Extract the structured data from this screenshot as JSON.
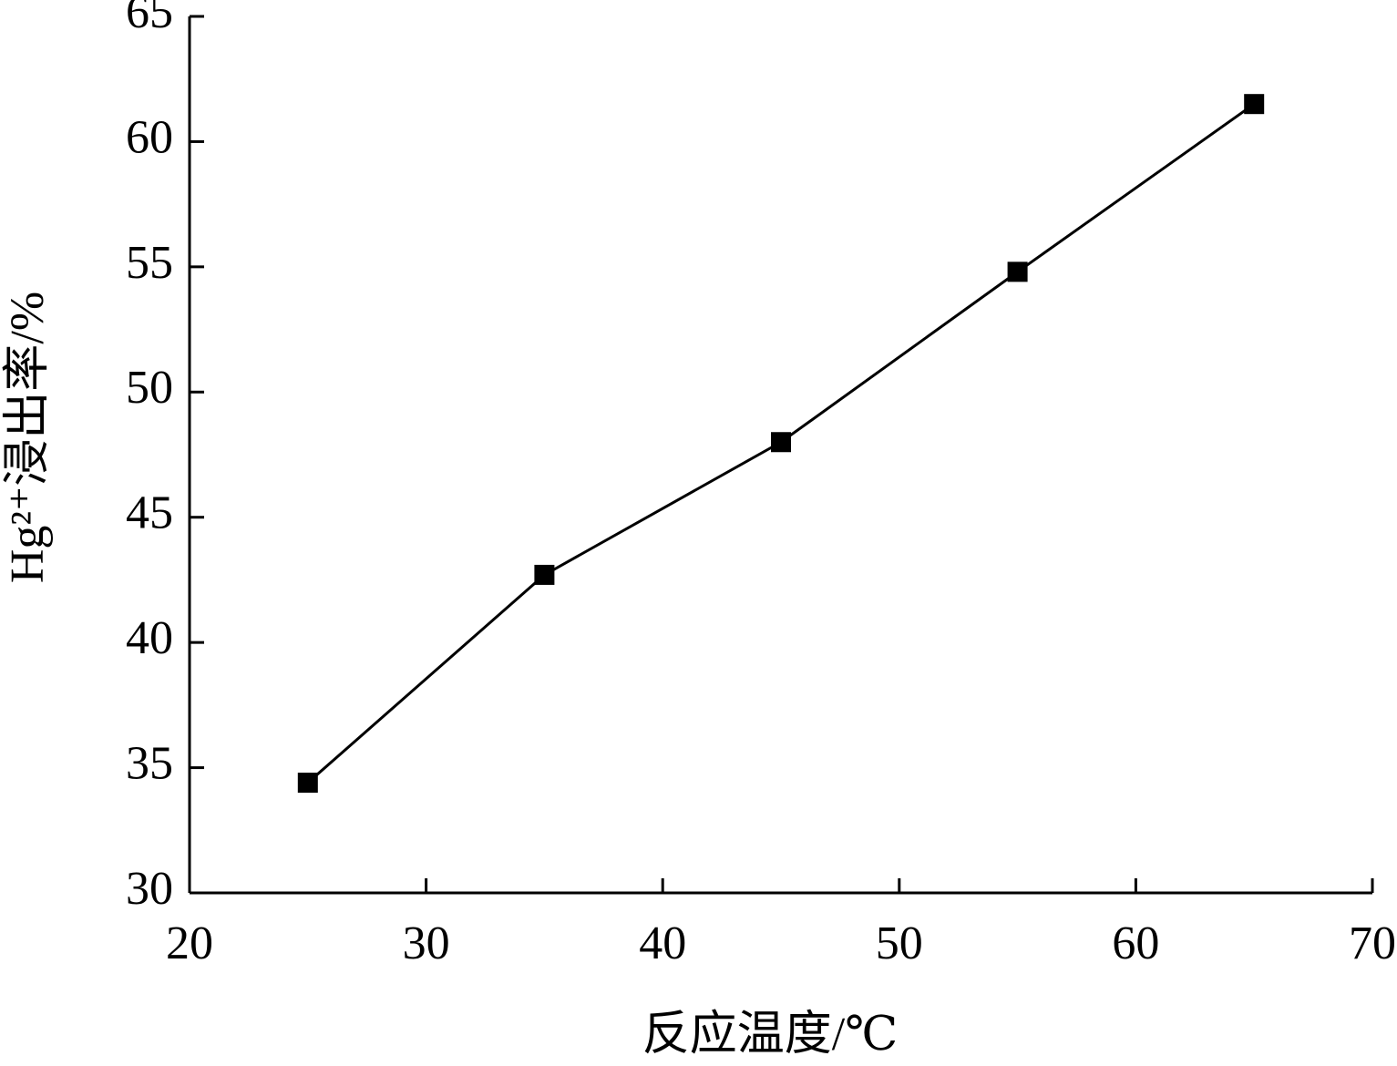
{
  "chart_data": {
    "type": "line",
    "x_label": "反应温度/℃",
    "y_label": "Hg²⁺浸出率/%",
    "x": [
      25,
      35,
      45,
      55,
      65
    ],
    "series": [
      {
        "color": "#000000",
        "values": [
          34.4,
          42.7,
          48.0,
          54.8,
          61.5
        ]
      }
    ],
    "xlim": [
      20,
      70
    ],
    "xticks": [
      20,
      30,
      40,
      50,
      60,
      70
    ],
    "ylim": [
      30,
      65
    ],
    "yticks": [
      30,
      35,
      40,
      45,
      50,
      55,
      60,
      65
    ]
  }
}
